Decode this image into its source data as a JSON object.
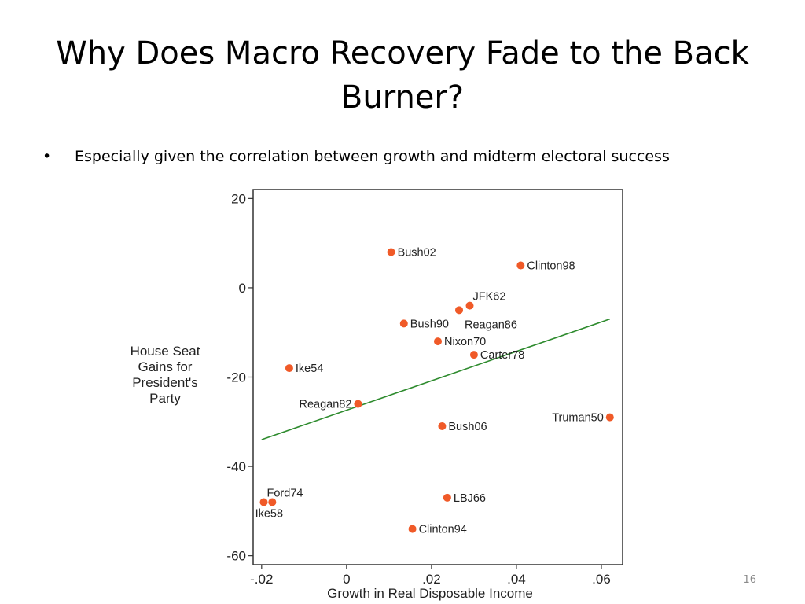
{
  "slide": {
    "title": "Why Does Macro Recovery Fade to the Back Burner?",
    "bullets": [
      "Especially given the correlation between growth and midterm electoral success"
    ],
    "page_number": "16"
  },
  "colors": {
    "point": "#f05a28",
    "fit_line": "#2e8b2e",
    "frame": "#333333"
  },
  "chart_data": {
    "type": "scatter",
    "title": "",
    "xlabel": "Growth in Real Disposable Income",
    "ylabel_lines": [
      "House Seat",
      "Gains for",
      "President's",
      "Party"
    ],
    "xlim": [
      -0.022,
      0.065
    ],
    "ylim": [
      -62,
      22
    ],
    "x_ticks": [
      {
        "value": -0.02,
        "label": "-.02"
      },
      {
        "value": 0,
        "label": "0"
      },
      {
        "value": 0.02,
        "label": ".02"
      },
      {
        "value": 0.04,
        "label": ".04"
      },
      {
        "value": 0.06,
        "label": ".06"
      }
    ],
    "y_ticks": [
      {
        "value": 20,
        "label": "20"
      },
      {
        "value": 0,
        "label": "0"
      },
      {
        "value": -20,
        "label": "-20"
      },
      {
        "value": -40,
        "label": "-40"
      },
      {
        "value": -60,
        "label": "-60"
      }
    ],
    "grid": false,
    "points": [
      {
        "label": "Bush02",
        "x": 0.0105,
        "y": 8,
        "label_side": "right"
      },
      {
        "label": "Clinton98",
        "x": 0.041,
        "y": 5,
        "label_side": "right"
      },
      {
        "label": "JFK62",
        "x": 0.029,
        "y": -4,
        "label_side": "above-right"
      },
      {
        "label": "Reagan86",
        "x": 0.0265,
        "y": -5,
        "label_side": "below-right"
      },
      {
        "label": "Bush90",
        "x": 0.0135,
        "y": -8,
        "label_side": "right"
      },
      {
        "label": "Nixon70",
        "x": 0.0215,
        "y": -12,
        "label_side": "right"
      },
      {
        "label": "Carter78",
        "x": 0.03,
        "y": -15,
        "label_side": "right"
      },
      {
        "label": "Ike54",
        "x": -0.0135,
        "y": -18,
        "label_side": "right"
      },
      {
        "label": "Reagan82",
        "x": 0.0027,
        "y": -26,
        "label_side": "left"
      },
      {
        "label": "Truman50",
        "x": 0.062,
        "y": -29,
        "label_side": "left"
      },
      {
        "label": "Bush06",
        "x": 0.0225,
        "y": -31,
        "label_side": "right"
      },
      {
        "label": "Ford74",
        "x": -0.0195,
        "y": -48,
        "label_side": "above-right"
      },
      {
        "label": "Ike58",
        "x": -0.0175,
        "y": -48,
        "label_side": "below"
      },
      {
        "label": "LBJ66",
        "x": 0.0237,
        "y": -47,
        "label_side": "right"
      },
      {
        "label": "Clinton94",
        "x": 0.0155,
        "y": -54,
        "label_side": "right"
      }
    ],
    "fit_line": {
      "x": [
        -0.02,
        0.062
      ],
      "y": [
        -34,
        -7
      ]
    }
  }
}
